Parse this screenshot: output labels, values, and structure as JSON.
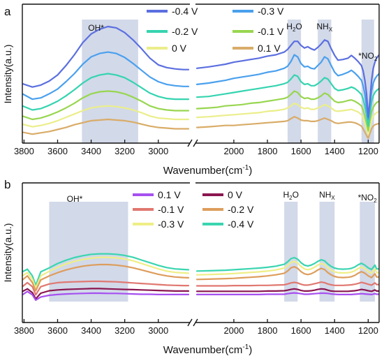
{
  "chart_data": [
    {
      "type": "line",
      "panel_letter": "a",
      "ylabel": "Intensity(a.u.)",
      "xlabel": "Wavenumber(cm",
      "xlabel_sup": "-1",
      "xlabel_end": ")",
      "x_axis_reversed": true,
      "x_break": [
        2820,
        2220
      ],
      "left_range": [
        3810,
        2820
      ],
      "right_range": [
        2220,
        1135
      ],
      "xticks": [
        3800,
        3600,
        3400,
        3200,
        3000,
        2000,
        1800,
        1600,
        1400,
        1200
      ],
      "regions": [
        {
          "label": "OH*",
          "x": [
            3455,
            3120
          ]
        },
        {
          "label": "H2O",
          "label_main": "H",
          "label_sub": "2",
          "label_end": "O",
          "x": [
            1680,
            1600
          ]
        },
        {
          "label": "NHX",
          "label_main": "NH",
          "label_sub": "X",
          "label_end": "",
          "x": [
            1500,
            1420
          ]
        },
        {
          "label": "*NO2",
          "label_main": "*NO",
          "label_sub": "2",
          "label_end": "",
          "x": [
            1240,
            1165
          ]
        }
      ],
      "x": [
        3810,
        3750,
        3700,
        3650,
        3600,
        3550,
        3500,
        3450,
        3400,
        3350,
        3300,
        3250,
        3200,
        3150,
        3100,
        3050,
        3000,
        2950,
        2900,
        2850,
        2820,
        2220,
        2150,
        2100,
        2050,
        2000,
        1950,
        1900,
        1850,
        1800,
        1750,
        1700,
        1680,
        1660,
        1640,
        1620,
        1600,
        1580,
        1560,
        1540,
        1520,
        1500,
        1480,
        1460,
        1440,
        1420,
        1400,
        1380,
        1350,
        1320,
        1300,
        1280,
        1260,
        1240,
        1230,
        1220,
        1210,
        1200,
        1190,
        1180,
        1170,
        1160,
        1150,
        1135
      ],
      "series": [
        {
          "name": "-0.4 V",
          "color": "#5b6fe0",
          "values": [
            85,
            90,
            87,
            81,
            72,
            58,
            42,
            24,
            11,
            4,
            0,
            2,
            9,
            20,
            33,
            47,
            57,
            61,
            63,
            64,
            64,
            62,
            60,
            58,
            56,
            53,
            51,
            49,
            47,
            44,
            42,
            38,
            34,
            28,
            22,
            22,
            28,
            32,
            30,
            33,
            35,
            31,
            26,
            20,
            22,
            33,
            43,
            50,
            49,
            47,
            43,
            47,
            52,
            58,
            66,
            80,
            100,
            135,
            110,
            80,
            62,
            53,
            47,
            42
          ]
        },
        {
          "name": "-0.3 V",
          "color": "#4aa0ee",
          "values": [
            100,
            108,
            106,
            100,
            93,
            82,
            70,
            56,
            45,
            40,
            38,
            40,
            46,
            55,
            65,
            75,
            82,
            86,
            88,
            89,
            89,
            86,
            84,
            82,
            80,
            77,
            75,
            73,
            71,
            68,
            66,
            62,
            59,
            52,
            42,
            45,
            55,
            60,
            59,
            62,
            63,
            58,
            53,
            45,
            48,
            58,
            68,
            73,
            71,
            68,
            65,
            69,
            74,
            80,
            88,
            100,
            120,
            138,
            118,
            96,
            84,
            78,
            74,
            70
          ]
        },
        {
          "name": "-0.2 V",
          "color": "#35d4b0",
          "values": [
            118,
            124,
            122,
            117,
            111,
            103,
            94,
            84,
            76,
            72,
            70,
            72,
            76,
            83,
            91,
            99,
            104,
            107,
            108,
            108,
            108,
            105,
            104,
            102,
            100,
            98,
            96,
            94,
            92,
            90,
            88,
            85,
            83,
            78,
            72,
            74,
            82,
            86,
            85,
            88,
            88,
            85,
            81,
            76,
            78,
            85,
            92,
            95,
            94,
            92,
            90,
            92,
            96,
            101,
            108,
            118,
            132,
            148,
            130,
            112,
            103,
            98,
            95,
            92
          ]
        },
        {
          "name": "-0.1 V",
          "color": "#98d650",
          "values": [
            133,
            138,
            136,
            132,
            127,
            121,
            114,
            106,
            100,
            97,
            96,
            97,
            100,
            105,
            111,
            118,
            122,
            124,
            125,
            125,
            125,
            122,
            121,
            120,
            118,
            117,
            116,
            114,
            113,
            111,
            109,
            107,
            105,
            101,
            96,
            98,
            104,
            107,
            106,
            108,
            108,
            106,
            103,
            99,
            101,
            106,
            111,
            113,
            112,
            110,
            109,
            111,
            114,
            118,
            124,
            133,
            144,
            155,
            140,
            127,
            120,
            116,
            113,
            111
          ]
        },
        {
          "name": "0 V",
          "color": "#ebee8a",
          "values": [
            145,
            149,
            147,
            144,
            140,
            135,
            130,
            125,
            121,
            119,
            118,
            119,
            121,
            124,
            128,
            133,
            136,
            137,
            138,
            138,
            138,
            135,
            134,
            133,
            132,
            131,
            130,
            129,
            128,
            126,
            125,
            123,
            121,
            118,
            114,
            116,
            120,
            122,
            121,
            123,
            123,
            121,
            119,
            116,
            118,
            121,
            125,
            126,
            125,
            124,
            123,
            125,
            127,
            131,
            136,
            144,
            152,
            160,
            149,
            139,
            133,
            130,
            128,
            126
          ]
        },
        {
          "name": "0.1 V",
          "color": "#d9ac68",
          "values": [
            157,
            160,
            158,
            156,
            153,
            150,
            146,
            143,
            140,
            139,
            138,
            139,
            140,
            142,
            145,
            148,
            150,
            151,
            152,
            152,
            152,
            150,
            149,
            148,
            147,
            147,
            146,
            145,
            144,
            143,
            142,
            141,
            140,
            137,
            134,
            136,
            139,
            140,
            140,
            141,
            141,
            140,
            138,
            136,
            138,
            140,
            143,
            144,
            143,
            142,
            142,
            143,
            145,
            148,
            152,
            157,
            162,
            166,
            159,
            152,
            148,
            146,
            145,
            144
          ]
        }
      ],
      "legend_placement": "top"
    },
    {
      "type": "line",
      "panel_letter": "b",
      "ylabel": "Intensity(a.u.)",
      "xlabel": "Wavenumber(cm",
      "xlabel_sup": "-1",
      "xlabel_end": ")",
      "x_axis_reversed": true,
      "x_break": [
        2820,
        2220
      ],
      "left_range": [
        3810,
        2820
      ],
      "right_range": [
        2220,
        1135
      ],
      "xticks": [
        3800,
        3600,
        3400,
        3200,
        3000,
        2000,
        1800,
        1600,
        1400,
        1200
      ],
      "regions": [
        {
          "label": "OH*",
          "x": [
            3650,
            3180
          ]
        },
        {
          "label": "H2O",
          "label_main": "H",
          "label_sub": "2",
          "label_end": "O",
          "x": [
            1700,
            1620
          ]
        },
        {
          "label": "NHX",
          "label_main": "NH",
          "label_sub": "X",
          "label_end": "",
          "x": [
            1490,
            1400
          ]
        },
        {
          "label": "*NO2",
          "label_main": "*NO",
          "label_sub": "2",
          "label_end": "",
          "x": [
            1250,
            1160
          ]
        }
      ],
      "x": [
        3810,
        3780,
        3750,
        3730,
        3700,
        3650,
        3600,
        3550,
        3500,
        3450,
        3400,
        3350,
        3300,
        3250,
        3200,
        3150,
        3100,
        3050,
        3000,
        2950,
        2900,
        2850,
        2820,
        2220,
        2150,
        2100,
        2050,
        2000,
        1950,
        1900,
        1850,
        1800,
        1750,
        1700,
        1680,
        1660,
        1640,
        1620,
        1600,
        1580,
        1560,
        1540,
        1520,
        1500,
        1480,
        1460,
        1440,
        1420,
        1400,
        1380,
        1350,
        1320,
        1300,
        1280,
        1260,
        1240,
        1220,
        1200,
        1180,
        1160,
        1150,
        1135
      ],
      "series": [
        {
          "name": "0.1 V",
          "color": "#a650f0",
          "values": [
            270,
            258,
            270,
            290,
            278,
            272,
            269,
            267,
            266,
            265,
            264,
            264,
            265,
            265,
            266,
            267,
            268,
            268,
            269,
            269,
            269,
            269,
            269,
            269,
            269,
            269,
            269,
            269,
            269,
            269,
            269,
            268,
            268,
            268,
            266,
            264,
            263,
            264,
            266,
            268,
            268,
            267,
            266,
            265,
            264,
            264,
            265,
            267,
            268,
            269,
            269,
            269,
            269,
            268,
            267,
            266,
            267,
            268,
            269,
            266,
            268,
            268
          ]
        },
        {
          "name": "0 V",
          "color": "#8a1650",
          "values": [
            258,
            248,
            262,
            285,
            264,
            255,
            252,
            250,
            249,
            248,
            247,
            247,
            248,
            249,
            250,
            251,
            252,
            253,
            254,
            255,
            256,
            256,
            256,
            257,
            257,
            257,
            257,
            257,
            257,
            257,
            257,
            256,
            256,
            255,
            253,
            250,
            248,
            250,
            254,
            256,
            256,
            255,
            253,
            250,
            248,
            249,
            253,
            256,
            257,
            257,
            257,
            257,
            256,
            255,
            253,
            250,
            252,
            255,
            257,
            252,
            256,
            256
          ]
        },
        {
          "name": "-0.1 V",
          "color": "#e07870",
          "values": [
            240,
            225,
            240,
            270,
            240,
            230,
            225,
            223,
            222,
            221,
            220,
            220,
            221,
            222,
            224,
            226,
            228,
            230,
            232,
            234,
            235,
            236,
            236,
            237,
            237,
            237,
            237,
            236,
            236,
            236,
            235,
            235,
            234,
            233,
            230,
            226,
            224,
            226,
            231,
            234,
            234,
            232,
            229,
            226,
            223,
            225,
            230,
            233,
            235,
            235,
            235,
            234,
            233,
            231,
            228,
            224,
            227,
            231,
            234,
            226,
            232,
            232
          ]
        },
        {
          "name": "-0.2 V",
          "color": "#dd9d5c",
          "values": [
            215,
            200,
            225,
            255,
            215,
            200,
            188,
            178,
            170,
            164,
            160,
            158,
            158,
            160,
            164,
            170,
            178,
            186,
            194,
            200,
            204,
            206,
            207,
            213,
            212,
            211,
            210,
            209,
            207,
            205,
            203,
            200,
            196,
            190,
            182,
            170,
            166,
            172,
            184,
            192,
            195,
            192,
            186,
            178,
            172,
            176,
            188,
            196,
            202,
            205,
            206,
            205,
            203,
            198,
            190,
            184,
            190,
            200,
            206,
            192,
            204,
            204
          ]
        },
        {
          "name": "-0.3 V",
          "color": "#eeee86",
          "values": [
            200,
            188,
            212,
            245,
            200,
            183,
            168,
            156,
            146,
            139,
            134,
            131,
            131,
            133,
            137,
            144,
            154,
            164,
            174,
            182,
            187,
            189,
            190,
            196,
            195,
            194,
            193,
            191,
            189,
            187,
            185,
            182,
            178,
            171,
            162,
            150,
            146,
            152,
            165,
            174,
            177,
            174,
            168,
            160,
            154,
            158,
            170,
            179,
            185,
            188,
            189,
            188,
            186,
            181,
            173,
            167,
            174,
            184,
            190,
            174,
            188,
            188
          ]
        },
        {
          "name": "-0.4 V",
          "color": "#3ad5b0",
          "values": [
            185,
            175,
            200,
            235,
            185,
            170,
            154,
            142,
            132,
            125,
            120,
            118,
            118,
            120,
            124,
            131,
            141,
            151,
            161,
            169,
            174,
            176,
            177,
            182,
            181,
            180,
            179,
            177,
            175,
            173,
            171,
            168,
            164,
            157,
            148,
            136,
            132,
            138,
            151,
            160,
            163,
            160,
            154,
            146,
            140,
            144,
            156,
            165,
            171,
            174,
            175,
            174,
            172,
            167,
            159,
            153,
            160,
            170,
            176,
            160,
            174,
            174
          ]
        }
      ],
      "legend_placement": "top"
    }
  ]
}
